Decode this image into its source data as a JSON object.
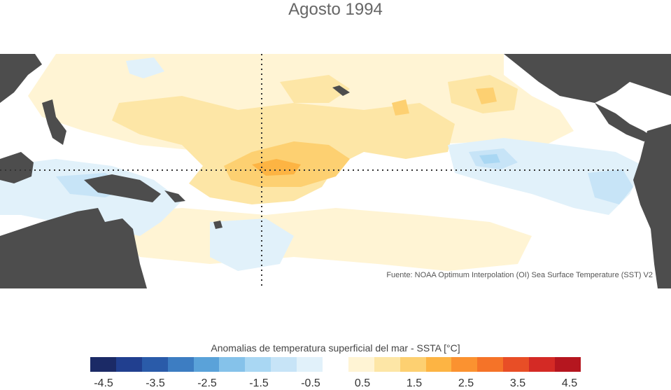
{
  "title": "Agosto 1994",
  "source_note": "Fuente: NOAA Optimum Interpolation (OI) Sea Surface Temperature (SST) V2",
  "colorbar": {
    "title": "Anomalias de temperatura superficial del mar - SSTA  [°C]",
    "colors": [
      "#1b2a66",
      "#213f8f",
      "#2a5ba9",
      "#3d7dc2",
      "#5aa2d9",
      "#85c2ea",
      "#a9d7f3",
      "#c7e4f7",
      "#e1f1fa",
      "#ffffff",
      "#fff4d4",
      "#fde6a6",
      "#fdd071",
      "#fdb443",
      "#fb9230",
      "#f57328",
      "#e84e26",
      "#d42a25",
      "#b5161f"
    ],
    "tick_labels": [
      "-4.5",
      "-3.5",
      "-2.5",
      "-1.5",
      "-0.5",
      "0.5",
      "1.5",
      "2.5",
      "3.5",
      "4.5"
    ]
  },
  "map": {
    "land_color": "#4d4d4d",
    "guide_lines": "dotted",
    "region": "Pacífico tropical"
  }
}
